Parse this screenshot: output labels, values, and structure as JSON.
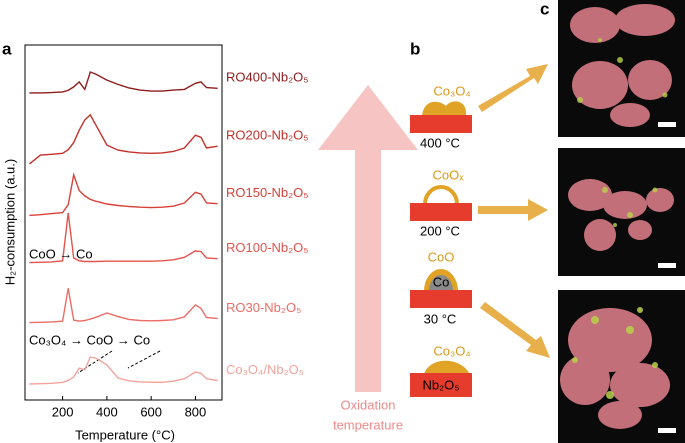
{
  "panel_labels": [
    "a",
    "b",
    "c"
  ],
  "chart_data": {
    "type": "line",
    "xlabel": "Temperature (°C)",
    "ylabel": "H₂-consumption (a.u.)",
    "x": [
      50,
      100,
      150,
      200,
      225,
      250,
      275,
      300,
      325,
      350,
      400,
      450,
      500,
      550,
      600,
      650,
      700,
      750,
      800,
      825,
      850,
      900
    ],
    "xlim": [
      30,
      920
    ],
    "xticks": [
      200,
      400,
      600,
      800
    ],
    "ylim": [
      0,
      100
    ],
    "series": [
      {
        "name": "RO400-Nb₂O₅",
        "color": "#8e1c1c",
        "values": [
          86.5,
          86.5,
          86.6,
          86.8,
          87.2,
          88.2,
          89.6,
          87.5,
          92.4,
          91.8,
          90.1,
          88.9,
          87.9,
          87.3,
          87.0,
          87.0,
          87.3,
          87.5,
          89.2,
          89.6,
          88.0,
          87.8
        ]
      },
      {
        "name": "RO200-Nb₂O₅",
        "color": "#c4302a",
        "values": [
          66.5,
          69,
          69.2,
          69.5,
          70.5,
          72.5,
          76,
          78.9,
          80.3,
          77.5,
          71.8,
          70.4,
          69.9,
          69.6,
          69.5,
          69.6,
          70,
          71,
          74.6,
          74,
          71,
          71.5
        ]
      },
      {
        "name": "RO150-Nb₂O₅",
        "color": "#d8413a",
        "values": [
          52,
          52.2,
          52.5,
          52.8,
          55,
          63.4,
          59,
          57.5,
          56.5,
          56,
          55.2,
          54.8,
          54.5,
          54.3,
          54.2,
          54.3,
          54.6,
          55.5,
          58.5,
          58,
          55.5,
          55.3
        ]
      },
      {
        "name": "RO100-Nb₂O₅",
        "color": "#e4534c",
        "values": [
          38.7,
          38.8,
          38.9,
          39.2,
          52.7,
          40,
          39.2,
          39,
          39,
          39,
          39.1,
          39.1,
          39.1,
          39.1,
          39.1,
          39.2,
          39.5,
          40.2,
          42,
          41.8,
          40,
          39.8
        ]
      },
      {
        "name": "RO30-Nb₂O₅",
        "color": "#eb6d66",
        "values": [
          21.8,
          21.9,
          22,
          22.2,
          31.5,
          22.5,
          22.2,
          22.4,
          22.8,
          23.3,
          24.5,
          23.5,
          22.7,
          22.4,
          22.3,
          22.4,
          22.6,
          23.4,
          26.8,
          25.8,
          23.2,
          23
        ]
      },
      {
        "name": "Co₃O₄/Nb₂O₅",
        "color": "#f3a39c",
        "values": [
          4.5,
          4.6,
          4.7,
          5,
          5.5,
          6.5,
          9,
          8.5,
          12.1,
          11.8,
          9.9,
          6.2,
          5.4,
          5.1,
          5,
          5,
          5.3,
          6,
          7.9,
          7.5,
          6,
          5.5
        ]
      }
    ],
    "annotations": [
      "CoO → Co",
      "Co₃O₄ → CoO → Co"
    ]
  },
  "arrow_label": [
    "Oxidation",
    "temperature"
  ],
  "diagram": {
    "rows": [
      {
        "particle": "Co₃O₄",
        "temperature": "400 °C"
      },
      {
        "particle": "CoOₓ",
        "temperature": "200 °C"
      },
      {
        "particle": "CoO",
        "core": "Co",
        "temperature": "30 °C"
      },
      {
        "particle": "Co₃O₄",
        "support": "Nb₂O₅"
      }
    ]
  }
}
